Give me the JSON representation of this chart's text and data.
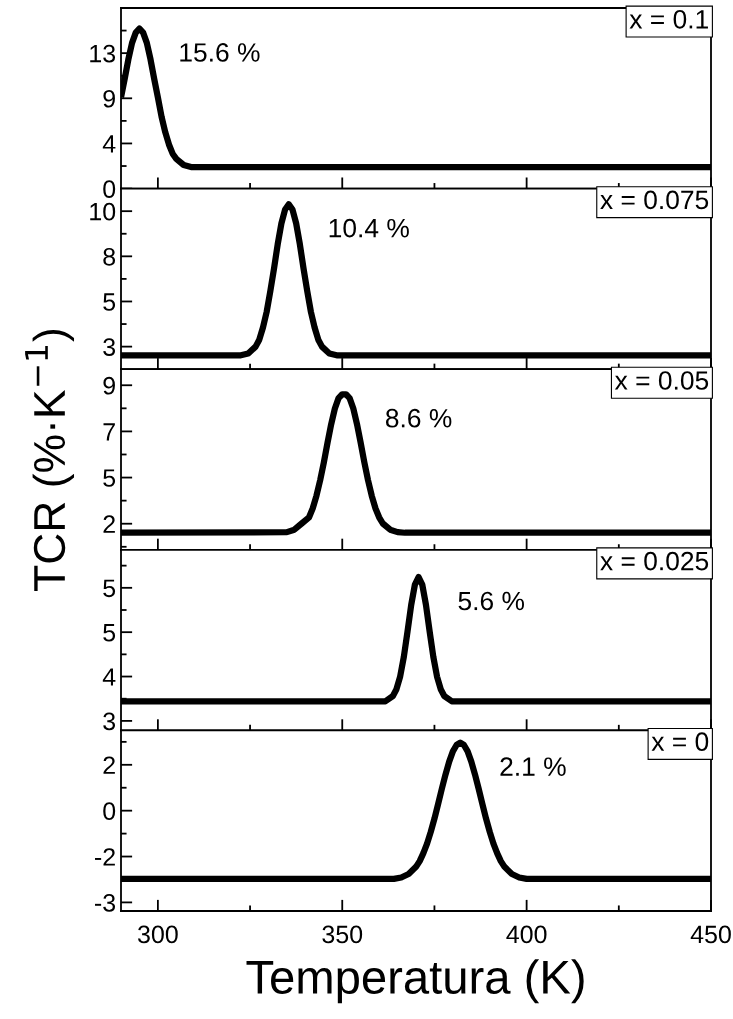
{
  "chart_data": [
    {
      "type": "line",
      "xlim": [
        290,
        450
      ],
      "ylim": [
        0,
        17.6
      ],
      "xticks": [
        {
          "value": 300,
          "label": null
        },
        {
          "value": 325,
          "label": null
        },
        {
          "value": 350,
          "label": null
        },
        {
          "value": 375,
          "label": null
        },
        {
          "value": 400,
          "label": null
        },
        {
          "value": 425,
          "label": null
        },
        {
          "value": 450,
          "label": null
        }
      ],
      "yticks": [
        0,
        {
          "value": 2.2,
          "label": null
        },
        {
          "value": 4.4,
          "label": "4"
        },
        {
          "value": 6.6,
          "label": null
        },
        {
          "value": 8.8,
          "label": "9"
        },
        {
          "value": 11.0,
          "label": null
        },
        {
          "value": 13.2,
          "label": "13"
        },
        {
          "value": 15.4,
          "label": null
        }
      ],
      "tick_labels": "y",
      "grid": false,
      "legend": false,
      "series": [
        {
          "color": "#000000",
          "x": [
            290,
            291,
            292,
            293,
            294,
            295,
            296,
            297,
            298,
            299,
            300,
            301,
            302,
            303,
            304,
            305,
            307,
            309,
            450
          ],
          "values": [
            8.9,
            10.7,
            12.6,
            14.2,
            15.2,
            15.6,
            15.2,
            14.2,
            12.6,
            10.7,
            8.9,
            7.0,
            5.5,
            4.3,
            3.4,
            2.9,
            2.3,
            2.1,
            2.1
          ]
        }
      ],
      "annotations": [
        "x = 0.1",
        {
          "text": "15.6 %",
          "x": 295,
          "y": 15.6
        }
      ]
    },
    {
      "type": "line",
      "xlim": [
        290,
        450
      ],
      "ylim": [
        1.3,
        11.7
      ],
      "xticks": [
        {
          "value": 300,
          "label": null
        },
        {
          "value": 325,
          "label": null
        },
        {
          "value": 350,
          "label": null
        },
        {
          "value": 375,
          "label": null
        },
        {
          "value": 400,
          "label": null
        },
        {
          "value": 425,
          "label": null
        },
        {
          "value": 450,
          "label": null
        }
      ],
      "yticks": [
        {
          "value": 2.6,
          "label": "3"
        },
        {
          "value": 3.9,
          "label": null
        },
        {
          "value": 5.2,
          "label": "5"
        },
        {
          "value": 6.5,
          "label": null
        },
        {
          "value": 7.8,
          "label": "8"
        },
        {
          "value": 9.1,
          "label": null
        },
        {
          "value": 10.4,
          "label": "10"
        }
      ],
      "tick_labels": "y",
      "grid": false,
      "legend": false,
      "series": [
        {
          "color": "#000000",
          "x": [
            290,
            322.5,
            324.5,
            326.5,
            327.5,
            328.5,
            329.5,
            330.5,
            331.5,
            332.5,
            333.5,
            334.5,
            335.5,
            336.5,
            337.5,
            338.5,
            339.5,
            340.5,
            341.5,
            342.5,
            343.5,
            344.5,
            346.5,
            348.5,
            450
          ],
          "values": [
            2.1,
            2.1,
            2.2,
            2.6,
            3.0,
            3.7,
            4.6,
            5.8,
            7.1,
            8.5,
            9.7,
            10.5,
            10.8,
            10.5,
            9.7,
            8.5,
            7.1,
            5.8,
            4.6,
            3.7,
            3.0,
            2.6,
            2.2,
            2.1,
            2.1
          ]
        }
      ],
      "annotations": [
        "x = 0.075",
        {
          "text": "10.4 %",
          "x": 335.5,
          "y": 10.8
        }
      ]
    },
    {
      "type": "line",
      "xlim": [
        290,
        450
      ],
      "ylim": [
        1.0,
        10.0
      ],
      "xticks": [
        {
          "value": 300,
          "label": null
        },
        {
          "value": 325,
          "label": null
        },
        {
          "value": 350,
          "label": null
        },
        {
          "value": 375,
          "label": null
        },
        {
          "value": 400,
          "label": null
        },
        {
          "value": 425,
          "label": null
        },
        {
          "value": 450,
          "label": null
        }
      ],
      "yticks": [
        {
          "value": 1.15,
          "label": null
        },
        {
          "value": 2.3,
          "label": "2"
        },
        {
          "value": 3.45,
          "label": null
        },
        {
          "value": 4.6,
          "label": "5"
        },
        {
          "value": 5.75,
          "label": null
        },
        {
          "value": 6.9,
          "label": "7"
        },
        {
          "value": 8.05,
          "label": null
        },
        {
          "value": 9.2,
          "label": "9"
        }
      ],
      "tick_labels": "y",
      "grid": false,
      "legend": false,
      "ylabel": "TCR (%·K$^{−1}$)",
      "series": [
        {
          "color": "#000000",
          "x": [
            290,
            335,
            337,
            339,
            341,
            342,
            343,
            344,
            345,
            346,
            347,
            348,
            349,
            350,
            351,
            352,
            353,
            354,
            355,
            356,
            357,
            358,
            359,
            360,
            361,
            363,
            365,
            367,
            450
          ],
          "values": [
            1.85,
            1.88,
            2.0,
            2.31,
            2.62,
            3.07,
            3.69,
            4.46,
            5.35,
            6.33,
            7.26,
            8.04,
            8.56,
            8.75,
            8.75,
            8.56,
            8.04,
            7.26,
            6.33,
            5.35,
            4.46,
            3.69,
            3.07,
            2.62,
            2.31,
            2.0,
            1.88,
            1.85,
            1.85
          ]
        }
      ],
      "annotations": [
        "x = 0.05",
        {
          "text": "8.6 %",
          "x": 351,
          "y": 8.75
        }
      ]
    },
    {
      "type": "line",
      "xlim": [
        290,
        450
      ],
      "ylim": [
        3.05,
        5.9
      ],
      "xticks": [
        {
          "value": 300,
          "label": null
        },
        {
          "value": 325,
          "label": null
        },
        {
          "value": 350,
          "label": null
        },
        {
          "value": 375,
          "label": null
        },
        {
          "value": 400,
          "label": null
        },
        {
          "value": 425,
          "label": null
        },
        {
          "value": 450,
          "label": null
        }
      ],
      "yticks": [
        {
          "value": 3.2,
          "label": "3"
        },
        {
          "value": 3.55,
          "label": null
        },
        {
          "value": 3.9,
          "label": "4"
        },
        {
          "value": 4.25,
          "label": null
        },
        {
          "value": 4.6,
          "label": "5"
        },
        {
          "value": 4.95,
          "label": null
        },
        {
          "value": 5.3,
          "label": "5"
        },
        {
          "value": 5.65,
          "label": null
        }
      ],
      "tick_labels": "y",
      "grid": false,
      "legend": false,
      "series": [
        {
          "color": "#000000",
          "x": [
            290,
            361.7,
            363.7,
            364.7,
            365.7,
            366.7,
            367.7,
            368.7,
            369.7,
            370.7,
            371.7,
            372.7,
            373.7,
            374.7,
            375.7,
            376.7,
            377.7,
            379.7,
            450
          ],
          "values": [
            3.51,
            3.51,
            3.59,
            3.7,
            3.9,
            4.21,
            4.61,
            5.03,
            5.35,
            5.47,
            5.35,
            5.03,
            4.61,
            4.21,
            3.9,
            3.7,
            3.59,
            3.51,
            3.51
          ]
        }
      ],
      "annotations": [
        "x = 0.025",
        {
          "text": "5.6 %",
          "x": 370.7,
          "y": 5.47
        }
      ]
    },
    {
      "type": "line",
      "xlim": [
        290,
        450
      ],
      "ylim": [
        -3.5,
        2.8
      ],
      "xticks": [
        {
          "value": 300,
          "label": "300"
        },
        {
          "value": 325,
          "label": null
        },
        {
          "value": 350,
          "label": "350"
        },
        {
          "value": 375,
          "label": null
        },
        {
          "value": 400,
          "label": "400"
        },
        {
          "value": 425,
          "label": null
        },
        {
          "value": 450,
          "label": "450"
        }
      ],
      "yticks": [
        {
          "value": -3.2,
          "label": "-3"
        },
        {
          "value": -2.4,
          "label": null
        },
        {
          "value": -1.6,
          "label": "-2"
        },
        {
          "value": -0.8,
          "label": null
        },
        0,
        {
          "value": 0.8,
          "label": null
        },
        {
          "value": 1.6,
          "label": "2"
        },
        {
          "value": 2.4,
          "label": null
        }
      ],
      "grid": false,
      "legend": false,
      "xlabel": "Temperatura (K)",
      "series": [
        {
          "color": "#000000",
          "x": [
            290,
            364,
            366,
            368,
            370,
            371,
            372,
            373,
            374,
            375,
            376,
            377,
            378,
            379,
            380,
            381,
            382,
            383,
            384,
            385,
            386,
            387,
            388,
            389,
            390,
            391,
            392,
            393,
            394,
            396,
            398,
            400,
            450
          ],
          "values": [
            -2.38,
            -2.38,
            -2.33,
            -2.21,
            -1.96,
            -1.76,
            -1.48,
            -1.15,
            -0.74,
            -0.28,
            0.23,
            0.76,
            1.26,
            1.71,
            2.07,
            2.29,
            2.37,
            2.29,
            2.07,
            1.71,
            1.26,
            0.76,
            0.23,
            -0.28,
            -0.74,
            -1.15,
            -1.48,
            -1.76,
            -1.96,
            -2.21,
            -2.33,
            -2.38,
            -2.38
          ]
        }
      ],
      "annotations": [
        "x = 0",
        {
          "text": "2.1 %",
          "x": 382,
          "y": 2.37
        }
      ]
    }
  ]
}
